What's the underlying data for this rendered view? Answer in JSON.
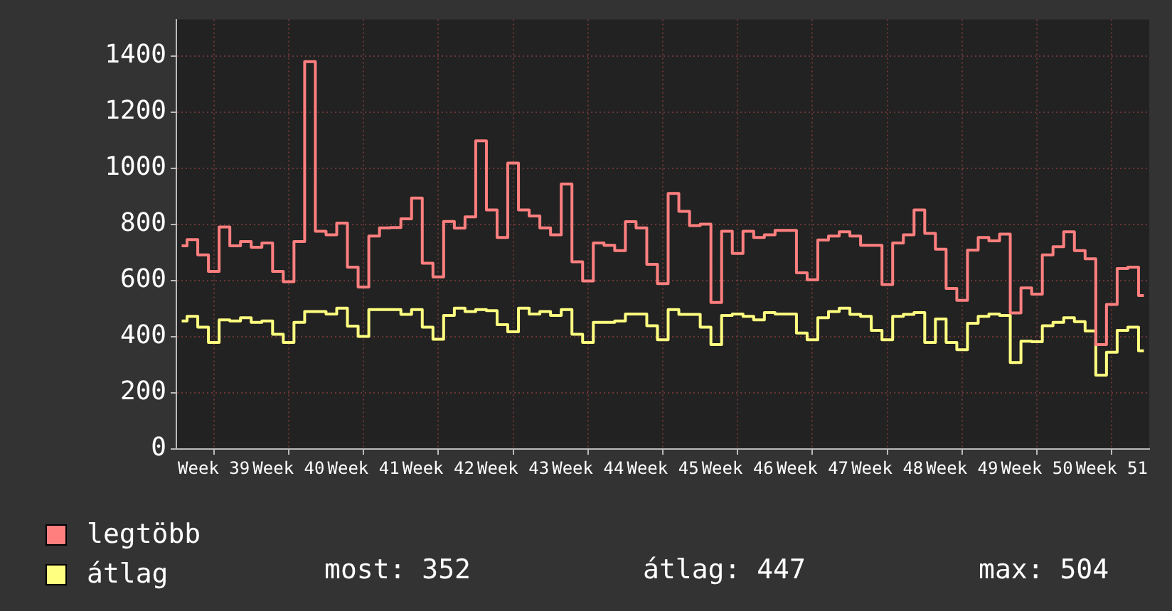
{
  "chart_data": {
    "type": "step",
    "categories": [
      null,
      null,
      null,
      "Week 39",
      null,
      null,
      null,
      null,
      null,
      null,
      "Week 40",
      null,
      null,
      null,
      null,
      null,
      null,
      "Week 41",
      null,
      null,
      null,
      null,
      null,
      null,
      "Week 42",
      null,
      null,
      null,
      null,
      null,
      null,
      "Week 43",
      null,
      null,
      null,
      null,
      null,
      null,
      "Week 44",
      null,
      null,
      null,
      null,
      null,
      null,
      "Week 45",
      null,
      null,
      null,
      null,
      null,
      null,
      "Week 46",
      null,
      null,
      null,
      null,
      null,
      null,
      "Week 47",
      null,
      null,
      null,
      null,
      null,
      null,
      "Week 48",
      null,
      null,
      null,
      null,
      null,
      null,
      "Week 49",
      null,
      null,
      null,
      null,
      null,
      null,
      "Week 50",
      null,
      null,
      null,
      null,
      null,
      null,
      "Week 51",
      null,
      null,
      null
    ],
    "ylim": [
      0,
      1530
    ],
    "yticks": [
      0,
      200,
      400,
      600,
      800,
      1000,
      1200,
      1400
    ],
    "grid": true,
    "legend": "bottom",
    "marker": "none",
    "series": [
      {
        "name": "legtöbb",
        "color": "#ff7f7f",
        "values": [
          724,
          746,
          692,
          633,
          791,
          724,
          739,
          719,
          734,
          633,
          596,
          739,
          1380,
          776,
          763,
          805,
          648,
          577,
          759,
          788,
          789,
          820,
          894,
          662,
          613,
          811,
          787,
          827,
          1098,
          852,
          754,
          1019,
          852,
          830,
          788,
          763,
          944,
          667,
          599,
          734,
          726,
          707,
          810,
          788,
          658,
          589,
          911,
          847,
          796,
          801,
          522,
          776,
          697,
          776,
          754,
          763,
          779,
          779,
          628,
          603,
          745,
          759,
          774,
          759,
          726,
          726,
          586,
          734,
          763,
          852,
          768,
          712,
          572,
          530,
          709,
          754,
          742,
          766,
          485,
          574,
          552,
          692,
          721,
          774,
          707,
          678,
          372,
          515,
          643,
          648,
          547
        ]
      },
      {
        "name": "átlag",
        "color": "#ffff80",
        "values": [
          456,
          473,
          434,
          380,
          460,
          456,
          468,
          451,
          456,
          409,
          380,
          451,
          490,
          490,
          481,
          502,
          438,
          401,
          497,
          497,
          497,
          480,
          497,
          434,
          391,
          476,
          502,
          490,
          497,
          493,
          443,
          418,
          502,
          481,
          490,
          476,
          497,
          409,
          380,
          451,
          451,
          456,
          481,
          481,
          439,
          389,
          497,
          480,
          480,
          434,
          372,
          476,
          481,
          473,
          460,
          486,
          481,
          481,
          413,
          389,
          468,
          490,
          502,
          480,
          473,
          423,
          389,
          473,
          480,
          486,
          380,
          463,
          380,
          354,
          448,
          473,
          481,
          476,
          308,
          384,
          382,
          439,
          451,
          468,
          454,
          421,
          263,
          345,
          423,
          434,
          350
        ]
      }
    ],
    "annotations": [
      "most: 352",
      "átlag: 447",
      "max: 504"
    ]
  }
}
